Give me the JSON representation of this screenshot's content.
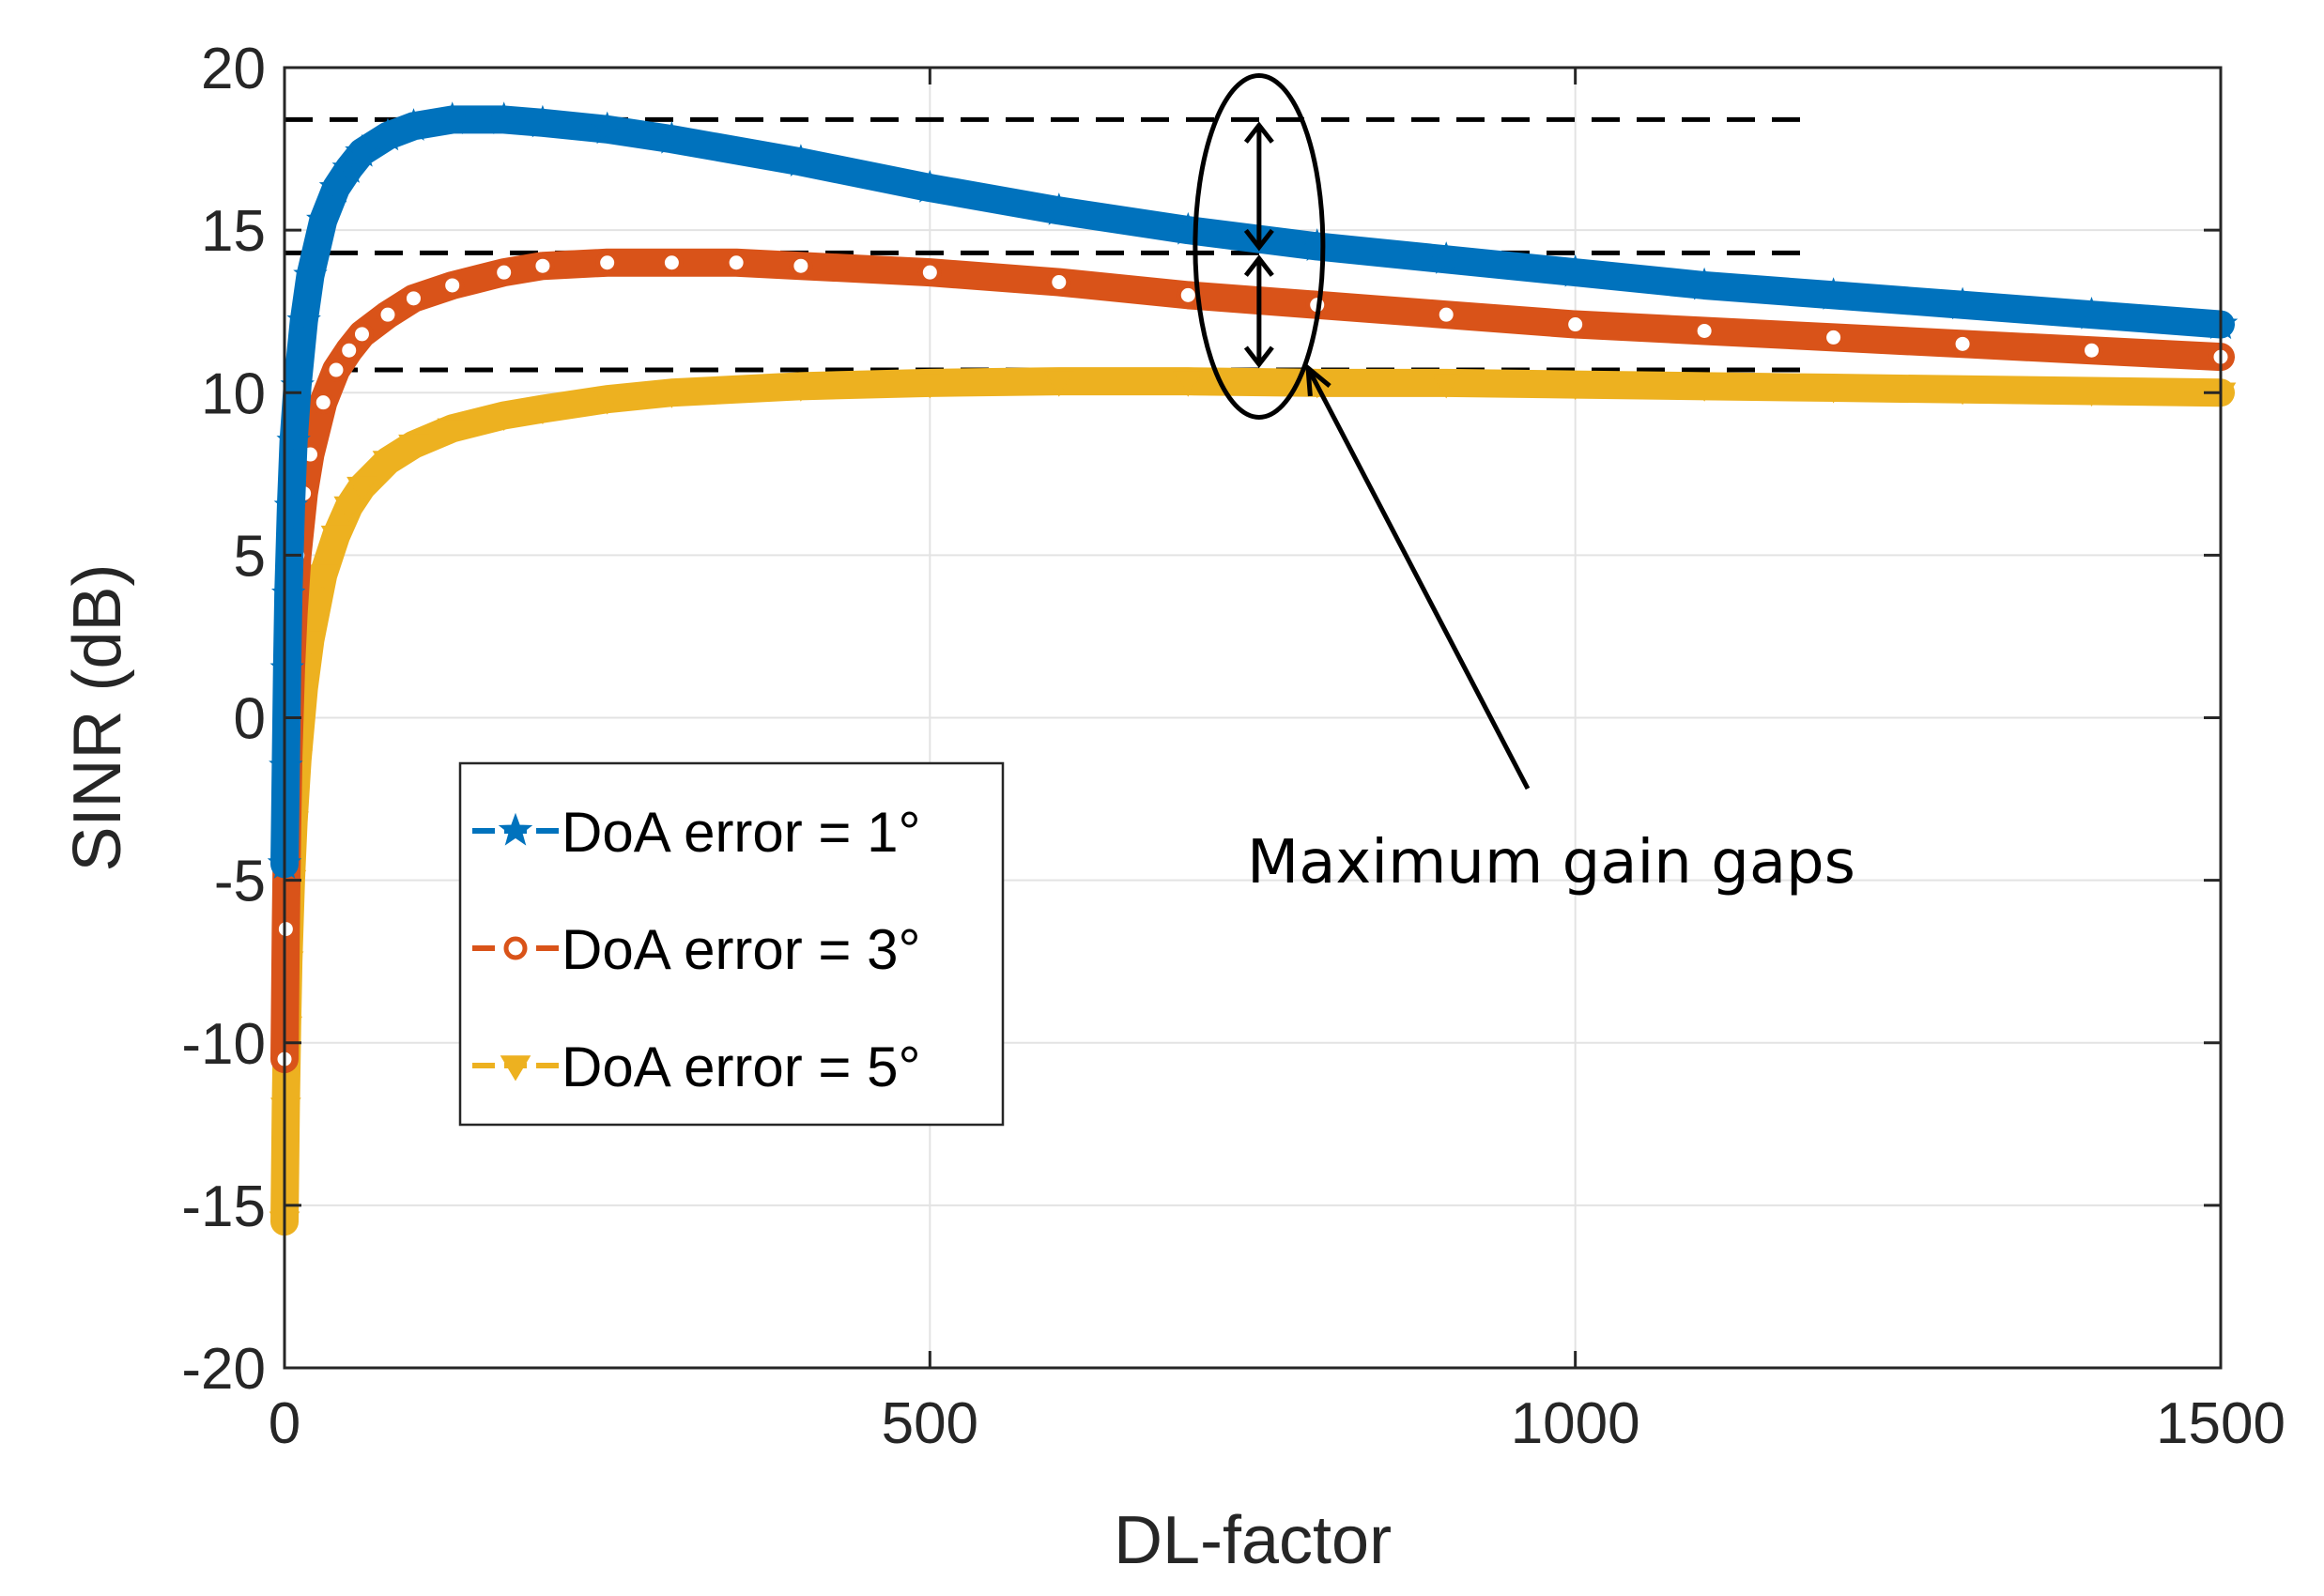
{
  "chart_data": {
    "type": "line",
    "title": "",
    "xlabel": "DL-factor",
    "ylabel": "SINR (dB)",
    "xlim": [
      0,
      1500
    ],
    "ylim": [
      -20,
      20
    ],
    "xticks": [
      0,
      500,
      1000,
      1500
    ],
    "xtick_labels": [
      "0",
      "500",
      "1000",
      "1500"
    ],
    "yticks": [
      -20,
      -15,
      -10,
      -5,
      0,
      5,
      10,
      15,
      20
    ],
    "ytick_labels": [
      "-20",
      "-15",
      "-10",
      "-5",
      "0",
      "5",
      "10",
      "15",
      "20"
    ],
    "grid": true,
    "legend_position": "center-left",
    "series": [
      {
        "name": "DoA error = 1°",
        "color": "#0072BD",
        "marker": "star",
        "x": [
          0,
          1,
          2,
          3,
          5,
          7,
          10,
          15,
          20,
          30,
          40,
          50,
          60,
          80,
          100,
          130,
          170,
          200,
          250,
          300,
          400,
          500,
          600,
          700,
          800,
          900,
          1000,
          1100,
          1200,
          1300,
          1400,
          1500
        ],
        "y": [
          -4.5,
          -1.5,
          1.5,
          3.8,
          6.5,
          8.5,
          10.2,
          12.2,
          13.6,
          15.3,
          16.3,
          16.9,
          17.4,
          17.9,
          18.2,
          18.4,
          18.4,
          18.3,
          18.1,
          17.8,
          17.1,
          16.3,
          15.6,
          15.0,
          14.5,
          14.1,
          13.7,
          13.3,
          13.0,
          12.7,
          12.4,
          12.1
        ]
      },
      {
        "name": "DoA error = 3°",
        "color": "#D95319",
        "marker": "circle",
        "x": [
          0,
          1,
          2,
          3,
          5,
          7,
          10,
          15,
          20,
          30,
          40,
          50,
          60,
          80,
          100,
          130,
          170,
          200,
          250,
          300,
          350,
          400,
          500,
          600,
          700,
          800,
          900,
          1000,
          1100,
          1200,
          1300,
          1400,
          1500
        ],
        "y": [
          -10.5,
          -6.5,
          -3.5,
          -1.2,
          1.5,
          3.2,
          5.0,
          6.9,
          8.1,
          9.7,
          10.7,
          11.3,
          11.8,
          12.4,
          12.9,
          13.3,
          13.7,
          13.9,
          14.0,
          14.0,
          14.0,
          13.9,
          13.7,
          13.4,
          13.0,
          12.7,
          12.4,
          12.1,
          11.9,
          11.7,
          11.5,
          11.3,
          11.1
        ]
      },
      {
        "name": "DoA error = 5°",
        "color": "#EDB120",
        "marker": "triangle-down",
        "x": [
          0,
          1,
          2,
          3,
          5,
          7,
          10,
          15,
          20,
          30,
          40,
          50,
          60,
          80,
          100,
          130,
          170,
          200,
          250,
          300,
          400,
          500,
          600,
          700,
          800,
          900,
          1000,
          1100,
          1200,
          1300,
          1400,
          1500
        ],
        "y": [
          -15.5,
          -12.0,
          -9.5,
          -7.5,
          -5.0,
          -3.2,
          -1.3,
          0.9,
          2.4,
          4.4,
          5.6,
          6.5,
          7.1,
          7.9,
          8.4,
          8.9,
          9.3,
          9.5,
          9.8,
          10.0,
          10.2,
          10.3,
          10.35,
          10.35,
          10.3,
          10.3,
          10.25,
          10.2,
          10.15,
          10.1,
          10.05,
          10.0
        ]
      }
    ],
    "reference_lines": [
      {
        "y": 18.4,
        "x_start": 0,
        "x_end": 1180,
        "style": "dashed"
      },
      {
        "y": 14.3,
        "x_start": 0,
        "x_end": 1180,
        "style": "dashed"
      },
      {
        "y": 10.7,
        "x_start": 0,
        "x_end": 1180,
        "style": "dashed"
      }
    ],
    "annotation": {
      "text": "Maximum gain gaps",
      "ellipse_center": [
        755,
        14.5
      ],
      "arrow_x": 755,
      "arrow_levels": [
        18.4,
        14.3,
        10.7
      ]
    }
  }
}
